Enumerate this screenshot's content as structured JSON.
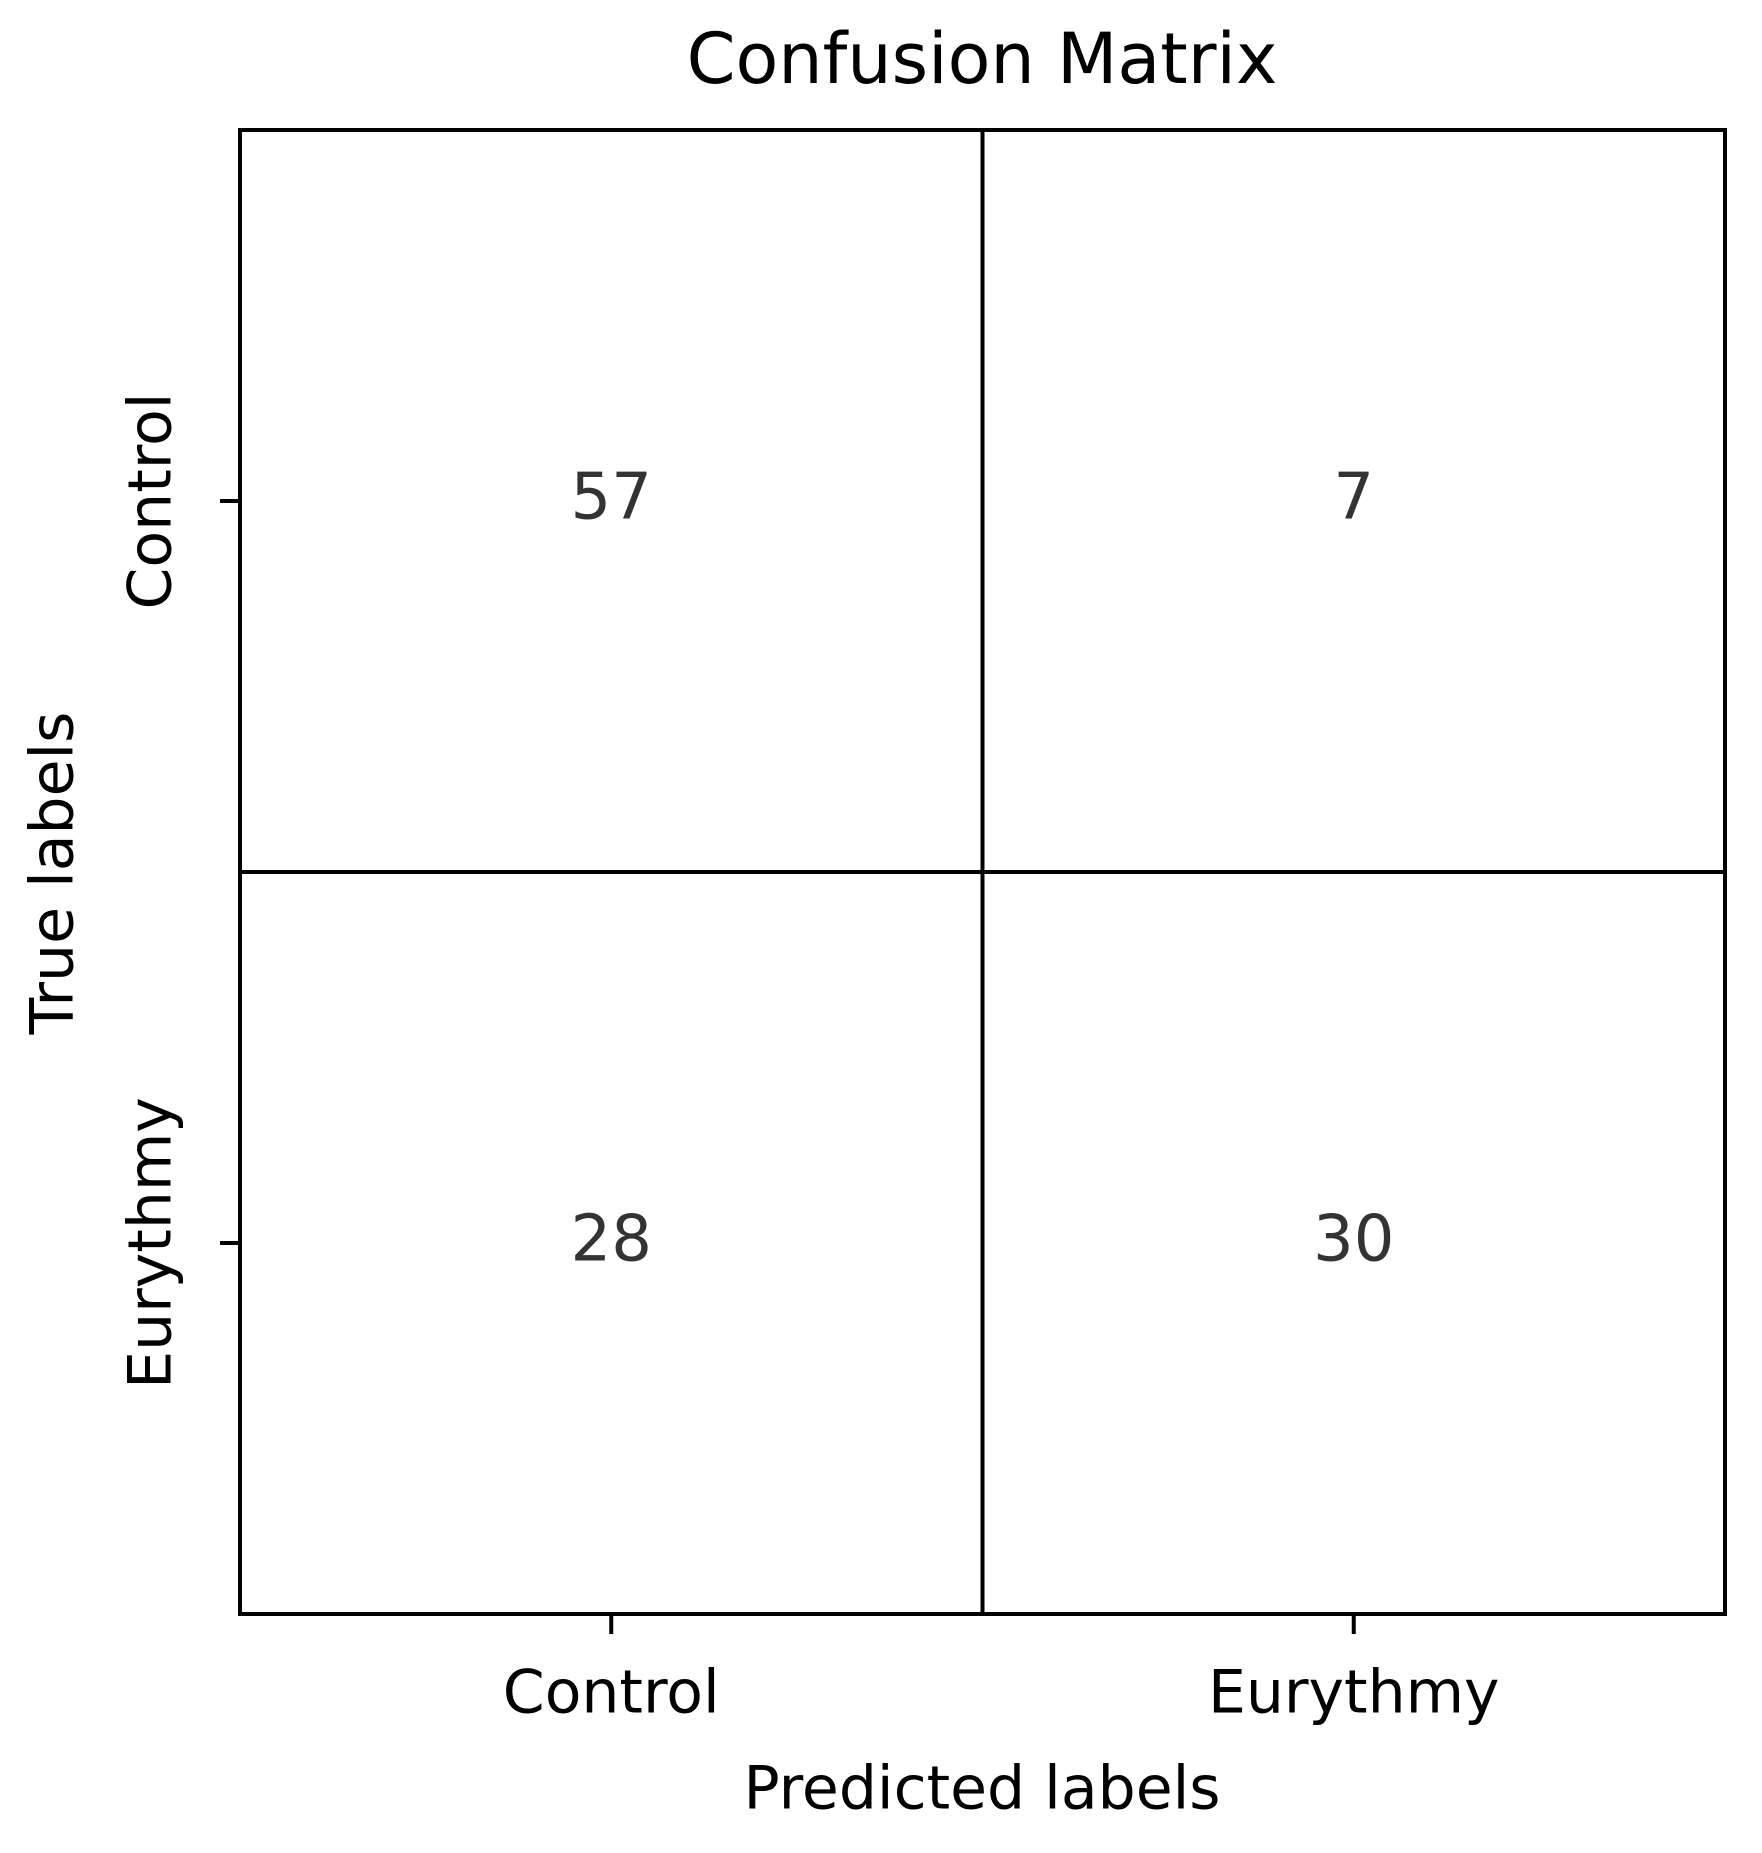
{
  "chart_data": {
    "type": "heatmap",
    "title": "Confusion Matrix",
    "x_label": "Predicted labels",
    "y_label": "True labels",
    "x_categories": [
      "Control",
      "Eurythmy"
    ],
    "y_categories": [
      "Control",
      "Eurythmy"
    ],
    "values": [
      [
        57,
        7
      ],
      [
        28,
        30
      ]
    ],
    "cell_color": "#ffffff"
  }
}
